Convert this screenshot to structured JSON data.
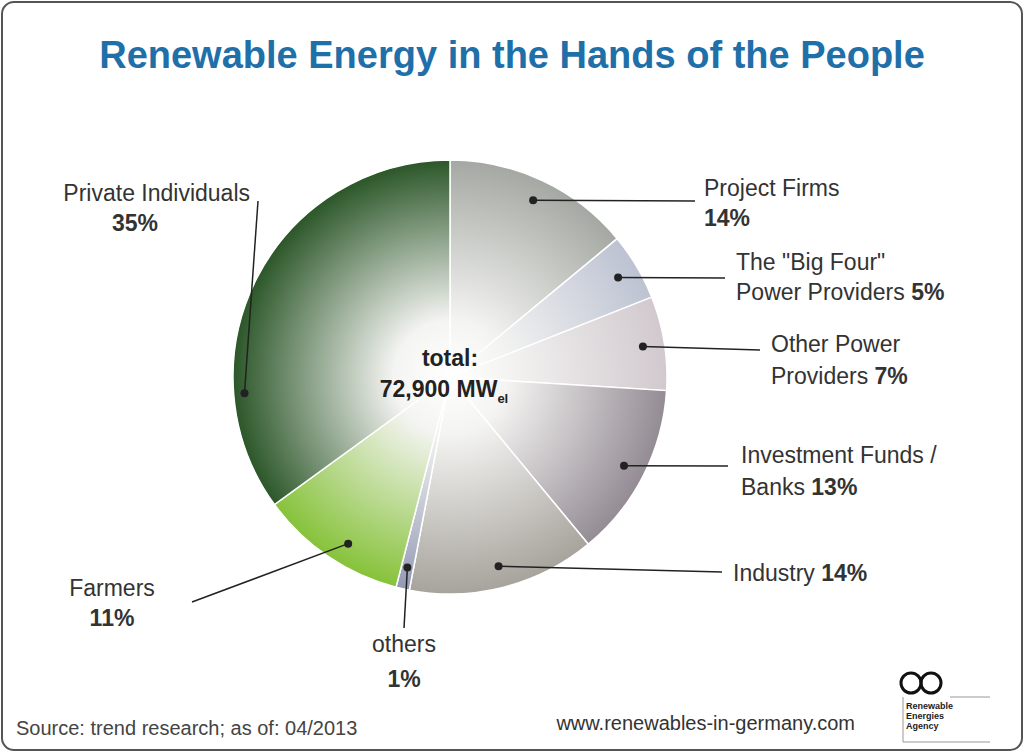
{
  "chart_data": {
    "type": "pie",
    "title": "Renewable Energy in the Hands of the People",
    "categories": [
      "Project Firms",
      "The \"Big Four\" Power Providers",
      "Other Power Providers",
      "Investment Funds / Banks",
      "Industry",
      "others",
      "Farmers",
      "Private Individuals"
    ],
    "values": [
      14,
      5,
      7,
      13,
      14,
      1,
      11,
      35
    ],
    "value_labels": [
      "14%",
      "5%",
      "7%",
      "13%",
      "14%",
      "1%",
      "11%",
      "35%"
    ],
    "colors": [
      "#9fa39d",
      "#b9bfd0",
      "#cfc6cc",
      "#8e858e",
      "#a29e97",
      "#8d94b0",
      "#7fbf2e",
      "#1f4d1c"
    ],
    "center_label": "total:",
    "center_value": "72,900 MW",
    "center_subscript": "el",
    "source": "Source: trend research; as of: 04/2013",
    "website": "www.renewables-in-germany.com",
    "logo_text": "Renewable Energies Agency"
  }
}
